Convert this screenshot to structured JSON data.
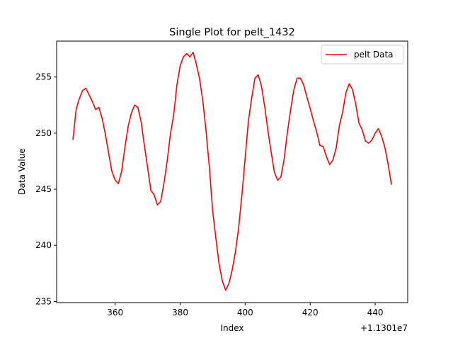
{
  "chart_data": {
    "type": "line",
    "title": "Single Plot for pelt_1432",
    "xlabel": "Index",
    "ylabel": "Data Value",
    "x_offset_label": "+1.1301e7",
    "xlim": [
      342,
      450
    ],
    "ylim": [
      234.9,
      258.2
    ],
    "x_ticks": [
      360,
      380,
      400,
      420,
      440
    ],
    "y_ticks": [
      235,
      240,
      245,
      250,
      255
    ],
    "grid": false,
    "legend_position": "top-right",
    "series": [
      {
        "name": "pelt Data",
        "color": "#ff0000",
        "x": [
          347,
          348,
          349,
          350,
          351,
          352,
          353,
          354,
          355,
          356,
          357,
          358,
          359,
          360,
          361,
          362,
          363,
          364,
          365,
          366,
          367,
          368,
          369,
          370,
          371,
          372,
          373,
          374,
          375,
          376,
          377,
          378,
          379,
          380,
          381,
          382,
          383,
          384,
          385,
          386,
          387,
          388,
          389,
          390,
          391,
          392,
          393,
          394,
          395,
          396,
          397,
          398,
          399,
          400,
          401,
          402,
          403,
          404,
          405,
          406,
          407,
          408,
          409,
          410,
          411,
          412,
          413,
          414,
          415,
          416,
          417,
          418,
          419,
          420,
          421,
          422,
          423,
          424,
          425,
          426,
          427,
          428,
          429,
          430,
          431,
          432,
          433,
          434,
          435,
          436,
          437,
          438,
          439,
          440,
          441,
          442,
          443,
          444,
          445
        ],
        "y": [
          249.4,
          252.1,
          253.1,
          253.8,
          254.0,
          253.4,
          252.8,
          252.1,
          252.3,
          251.3,
          249.9,
          248.2,
          246.6,
          245.8,
          245.5,
          246.6,
          248.7,
          250.6,
          251.8,
          252.5,
          252.3,
          251.0,
          248.9,
          246.9,
          244.9,
          244.5,
          243.6,
          243.9,
          245.5,
          247.5,
          249.9,
          251.6,
          254.3,
          256.0,
          256.8,
          257.1,
          256.8,
          257.2,
          256.1,
          254.8,
          252.8,
          250.1,
          246.9,
          243.1,
          240.6,
          238.3,
          236.8,
          236.0,
          236.6,
          237.8,
          239.4,
          241.6,
          244.5,
          247.8,
          251.1,
          253.1,
          254.9,
          255.2,
          254.2,
          252.4,
          250.2,
          248.3,
          246.5,
          245.8,
          246.1,
          247.7,
          250.1,
          252.1,
          253.9,
          254.9,
          254.9,
          254.3,
          253.2,
          252.2,
          251.1,
          250.1,
          248.9,
          248.8,
          247.9,
          247.2,
          247.6,
          248.7,
          250.7,
          251.9,
          253.6,
          254.4,
          253.9,
          252.6,
          250.9,
          250.3,
          249.3,
          249.1,
          249.4,
          250.0,
          250.4,
          249.7,
          248.7,
          247.2,
          245.4
        ]
      }
    ]
  }
}
